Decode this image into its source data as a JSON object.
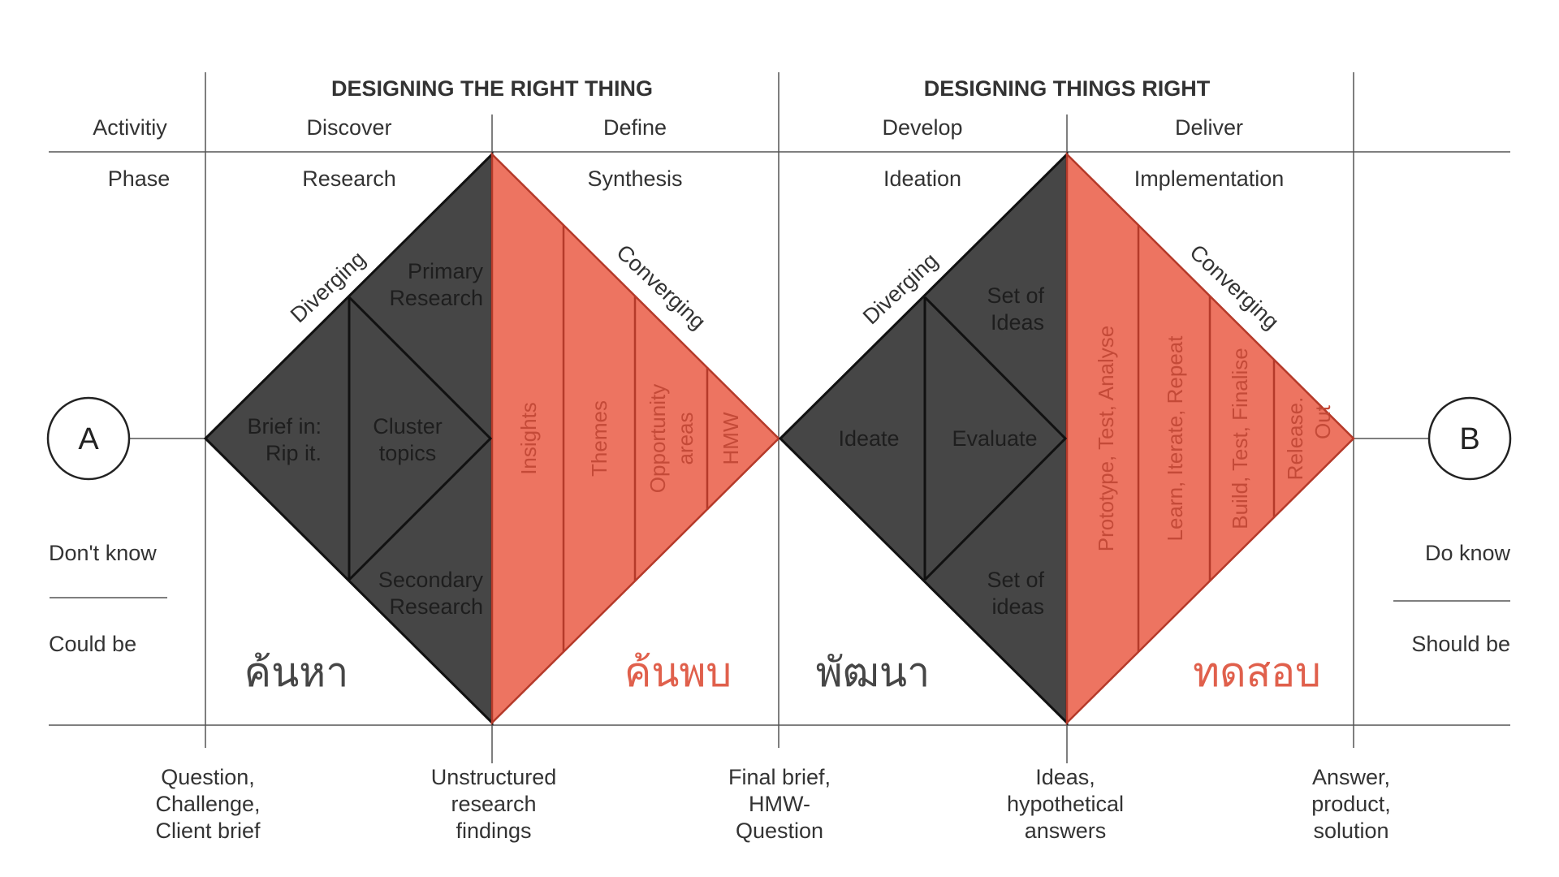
{
  "headers": {
    "left": "DESIGNING THE RIGHT THING",
    "right": "DESIGNING THINGS RIGHT"
  },
  "activity_row": {
    "label": "Activitiy",
    "items": [
      "Discover",
      "Define",
      "Develop",
      "Deliver"
    ]
  },
  "phase_row": {
    "label": "Phase",
    "items": [
      "Research",
      "Synthesis",
      "Ideation",
      "Implementation"
    ]
  },
  "endpoints": {
    "start": "A",
    "end": "B"
  },
  "left_side": {
    "top": "Don't know",
    "bottom": "Could be"
  },
  "right_side": {
    "top": "Do know",
    "bottom": "Should be"
  },
  "diamond1": {
    "diverging": "Diverging",
    "converging": "Converging",
    "primary": [
      "Primary",
      "Research"
    ],
    "brief": [
      "Brief in:",
      "Rip it."
    ],
    "cluster": [
      "Cluster",
      "topics"
    ],
    "secondary": [
      "Secondary",
      "Research"
    ],
    "stripes": [
      "Insights",
      "Themes",
      "Opportunity",
      "areas",
      "HMW"
    ],
    "thai_left": "ค้นหา",
    "thai_right": "ค้นพบ"
  },
  "diamond2": {
    "diverging": "Diverging",
    "converging": "Converging",
    "set_top": [
      "Set of",
      "Ideas"
    ],
    "ideate": "Ideate",
    "evaluate": "Evaluate",
    "set_bottom": [
      "Set of",
      "ideas"
    ],
    "stripes": [
      "Prototype, Test, Analyse",
      "Learn, Iterate, Repeat",
      "Build, Test, Finalise",
      "Release.",
      "Out"
    ],
    "thai_left": "พัฒนา",
    "thai_right": "ทดสอบ"
  },
  "outputs": [
    [
      "Question,",
      "Challenge,",
      "Client brief"
    ],
    [
      "Unstructured",
      "research",
      "findings"
    ],
    [
      "Final brief,",
      "HMW-",
      "Question"
    ],
    [
      "Ideas,",
      "hypothetical",
      "answers"
    ],
    [
      "Answer,",
      "product,",
      "solution"
    ]
  ],
  "colors": {
    "dark": "#464646",
    "red": "#ed7461",
    "stripe_line": "#b53a2a"
  }
}
